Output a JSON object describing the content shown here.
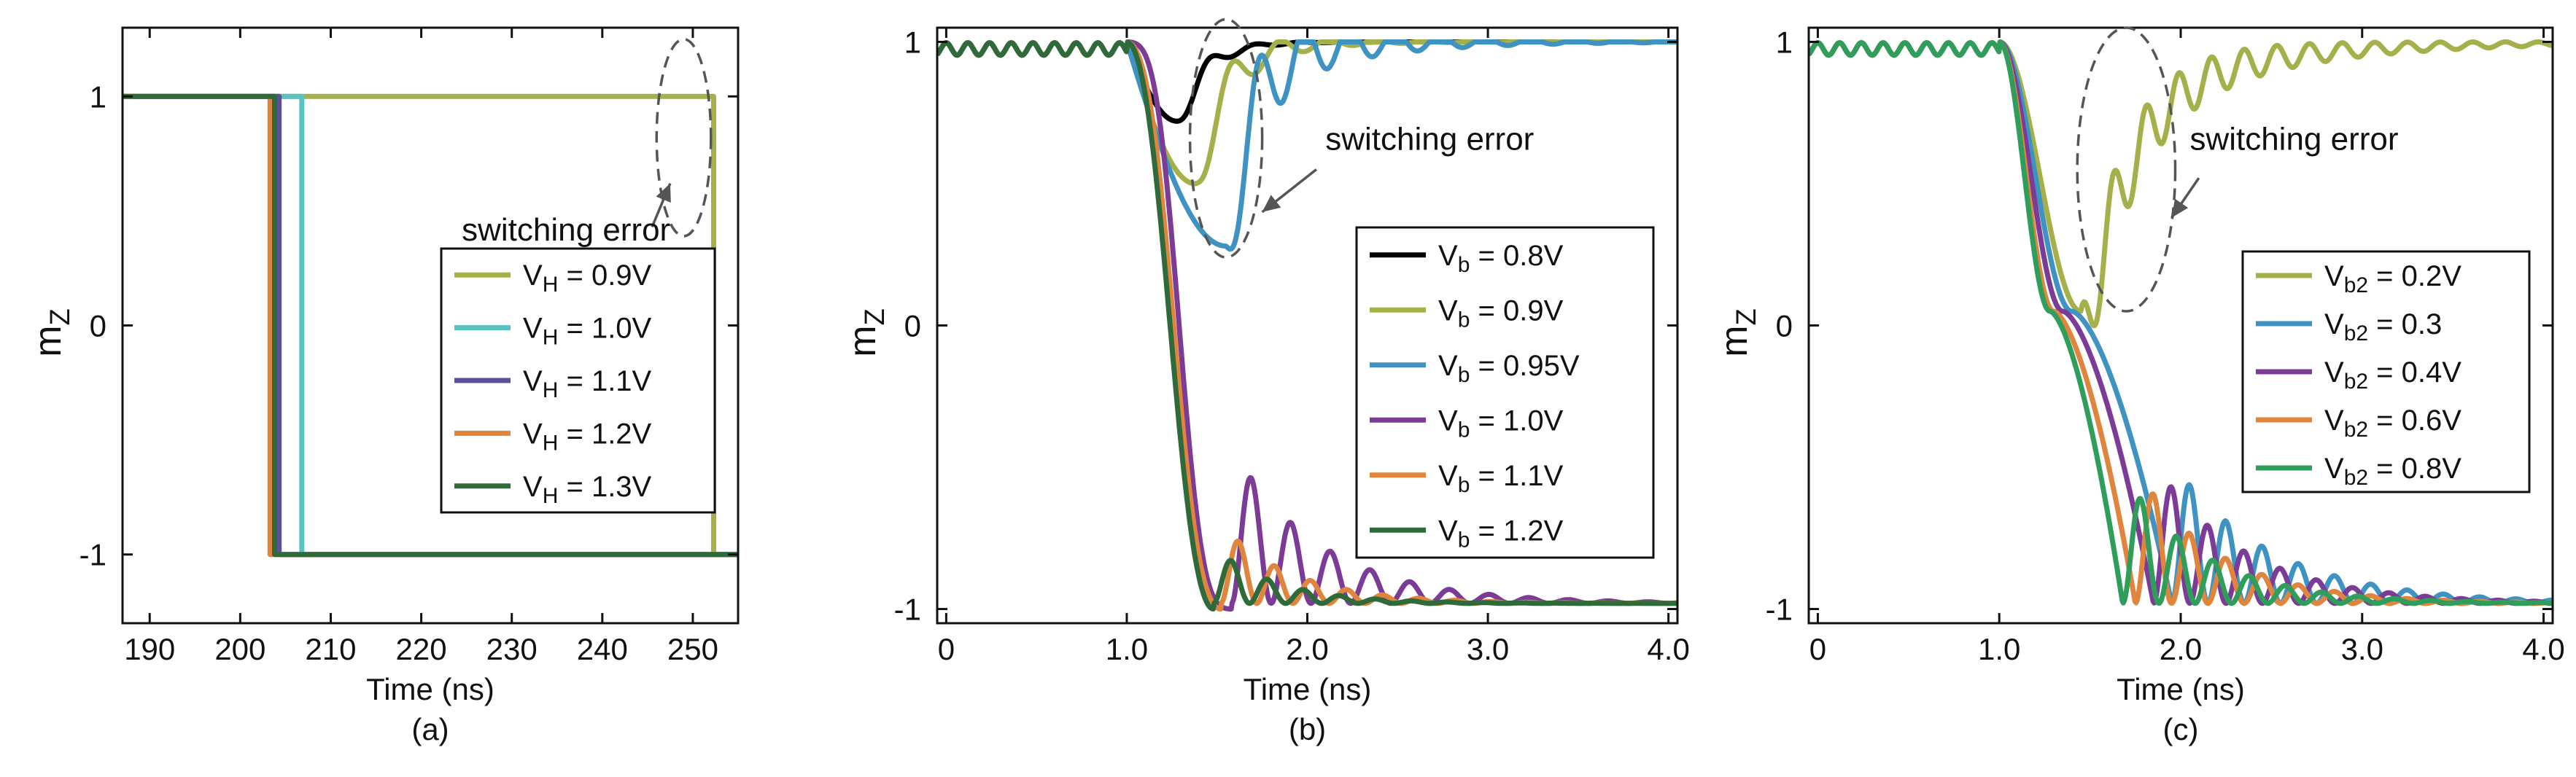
{
  "chart_data": [
    {
      "id": "a",
      "type": "line",
      "panel_label": "(a)",
      "xlabel": "Time (ns)",
      "ylabel": "m",
      "ylabel_sub": "Z",
      "xlim": [
        187,
        255
      ],
      "ylim": [
        -1.3,
        1.3
      ],
      "xticks": [
        190,
        200,
        210,
        220,
        230,
        240,
        250
      ],
      "xtick_labels": [
        "190",
        "200",
        "210",
        "220",
        "230",
        "240",
        "250"
      ],
      "yticks": [
        -1,
        0,
        1
      ],
      "ytick_labels": [
        "-1",
        "0",
        "1"
      ],
      "kind": "step",
      "legend_labels": [
        "V",
        "V",
        "V",
        "V",
        "V"
      ],
      "series": [
        {
          "name": "VH = 0.9V",
          "label_main": "V",
          "label_sub": "H",
          "label_rest": " = 0.9V",
          "color": "#a5b04a",
          "switch_time": 252.3
        },
        {
          "name": "VH = 1.0V",
          "label_main": "V",
          "label_sub": "H",
          "label_rest": " = 1.0V",
          "color": "#5bc2c2",
          "switch_time": 206.8
        },
        {
          "name": "VH = 1.1V",
          "label_main": "V",
          "label_sub": "H",
          "label_rest": " = 1.1V",
          "color": "#5b4f9a",
          "switch_time": 204.3
        },
        {
          "name": "VH = 1.2V",
          "label_main": "V",
          "label_sub": "H",
          "label_rest": " = 1.2V",
          "color": "#e0853d",
          "switch_time": 203.3
        },
        {
          "name": "VH = 1.3V",
          "label_main": "V",
          "label_sub": "H",
          "label_rest": " = 1.3V",
          "color": "#2f6b3a",
          "switch_time": 203.8
        }
      ],
      "annotation": {
        "text": "switching error",
        "ellipse_center": [
          249,
          0.82
        ],
        "ellipse_radius": [
          3,
          0.43
        ],
        "text_at": [
          236,
          0.37
        ],
        "arrow_from": [
          245.5,
          0.43
        ],
        "arrow_to": [
          247.5,
          0.62
        ]
      }
    },
    {
      "id": "b",
      "type": "line",
      "panel_label": "(b)",
      "xlabel": "Time (ns)",
      "ylabel": "m",
      "ylabel_sub": "Z",
      "xlim": [
        -0.05,
        4.05
      ],
      "ylim": [
        -1.05,
        1.05
      ],
      "xticks": [
        0,
        1,
        2,
        3,
        4
      ],
      "xtick_labels": [
        "0",
        "1.0",
        "2.0",
        "3.0",
        "4.0"
      ],
      "yticks": [
        -1,
        0,
        1
      ],
      "ytick_labels": [
        "-1",
        "0",
        "1"
      ],
      "kind": "dynamics",
      "series": [
        {
          "name": "Vb = 0.8V",
          "label_main": "V",
          "label_sub": "b",
          "label_rest": " = 0.8V",
          "color": "#000000",
          "mode": "recover",
          "t0": 1.0,
          "tmin": 1.28,
          "vmin": 0.72,
          "period": 0.25,
          "tau": 0.2,
          "amp": 0.5
        },
        {
          "name": "Vb = 0.9V",
          "label_main": "V",
          "label_sub": "b",
          "label_rest": " = 0.9V",
          "color": "#a5b04a",
          "mode": "recover",
          "t0": 1.0,
          "tmin": 1.38,
          "vmin": 0.5,
          "period": 0.27,
          "tau": 0.35,
          "amp": 0.5
        },
        {
          "name": "Vb = 0.95V",
          "label_main": "V",
          "label_sub": "b",
          "label_rest": " = 0.95V",
          "color": "#3e93c2",
          "mode": "recover",
          "t0": 1.0,
          "tmin": 1.55,
          "vmin": 0.28,
          "period": 0.25,
          "tau": 0.55,
          "amp": 0.6
        },
        {
          "name": "Vb = 1.0V",
          "label_main": "V",
          "label_sub": "b",
          "label_rest": " = 1.0V",
          "color": "#7b3b96",
          "mode": "switch",
          "t0": 1.0,
          "t1": 1.58,
          "bump": 0.22,
          "period": 0.22,
          "tau": 0.5,
          "amp": 0.55
        },
        {
          "name": "Vb = 1.1V",
          "label_main": "V",
          "label_sub": "b",
          "label_rest": " = 1.1V",
          "color": "#e0853d",
          "mode": "switch",
          "t0": 1.0,
          "t1": 1.52,
          "bump": 0.1,
          "period": 0.2,
          "tau": 0.4,
          "amp": 0.28
        },
        {
          "name": "Vb = 1.2V",
          "label_main": "V",
          "label_sub": "b",
          "label_rest": " = 1.2V",
          "color": "#2f6b3a",
          "mode": "switch",
          "t0": 1.0,
          "t1": 1.48,
          "bump": 0.05,
          "period": 0.2,
          "tau": 0.35,
          "amp": 0.2
        }
      ],
      "annotation": {
        "text": "switching error",
        "ellipse_center": [
          1.55,
          0.66
        ],
        "ellipse_radius": [
          0.2,
          0.42
        ],
        "text_at": [
          2.1,
          0.62
        ],
        "arrow_from": [
          2.05,
          0.55
        ],
        "arrow_to": [
          1.75,
          0.4
        ]
      }
    },
    {
      "id": "c",
      "type": "line",
      "panel_label": "(c)",
      "xlabel": "Time (ns)",
      "ylabel": "m",
      "ylabel_sub": "Z",
      "xlim": [
        -0.05,
        4.05
      ],
      "ylim": [
        -1.05,
        1.05
      ],
      "xticks": [
        0,
        1,
        2,
        3,
        4
      ],
      "xtick_labels": [
        "0",
        "1.0",
        "2.0",
        "3.0",
        "4.0"
      ],
      "yticks": [
        -1,
        0,
        1
      ],
      "ytick_labels": [
        "-1",
        "0",
        "1"
      ],
      "kind": "dynamics",
      "series": [
        {
          "name": "Vb2 = 0.2V",
          "label_main": "V",
          "label_sub": "b2",
          "label_rest": " = 0.2V",
          "color": "#a5b04a",
          "mode": "recover2",
          "t0": 1.0,
          "plateau": 0.05,
          "tp": 1.45,
          "period": 0.18,
          "tau": 0.8,
          "amp": 0.5
        },
        {
          "name": "Vb2 = 0.3",
          "label_main": "V",
          "label_sub": "b2",
          "label_rest": " = 0.3",
          "color": "#3e93c2",
          "mode": "switch2",
          "t0": 1.0,
          "tp": 1.4,
          "t1": 1.95,
          "period": 0.2,
          "tau": 0.55,
          "amp": 0.5
        },
        {
          "name": "Vb2 = 0.4V",
          "label_main": "V",
          "label_sub": "b2",
          "label_rest": " = 0.4V",
          "color": "#7b3b96",
          "mode": "switch2",
          "t0": 1.0,
          "tp": 1.35,
          "t1": 1.85,
          "period": 0.2,
          "tau": 0.5,
          "amp": 0.5
        },
        {
          "name": "Vb2 = 0.6V",
          "label_main": "V",
          "label_sub": "b2",
          "label_rest": " = 0.6V",
          "color": "#e0853d",
          "mode": "switch2",
          "t0": 1.0,
          "tp": 1.3,
          "t1": 1.75,
          "period": 0.2,
          "tau": 0.45,
          "amp": 0.48
        },
        {
          "name": "Vb2 = 0.8V",
          "label_main": "V",
          "label_sub": "b2",
          "label_rest": " = 0.8V",
          "color": "#2e9e5a",
          "mode": "switch2",
          "t0": 1.0,
          "tp": 1.28,
          "t1": 1.68,
          "period": 0.2,
          "tau": 0.45,
          "amp": 0.46
        }
      ],
      "annotation": {
        "text": "switching error",
        "ellipse_center": [
          1.7,
          0.55
        ],
        "ellipse_radius": [
          0.27,
          0.5
        ],
        "text_at": [
          2.05,
          0.62
        ],
        "arrow_from": [
          2.1,
          0.52
        ],
        "arrow_to": [
          1.95,
          0.38
        ]
      }
    }
  ]
}
